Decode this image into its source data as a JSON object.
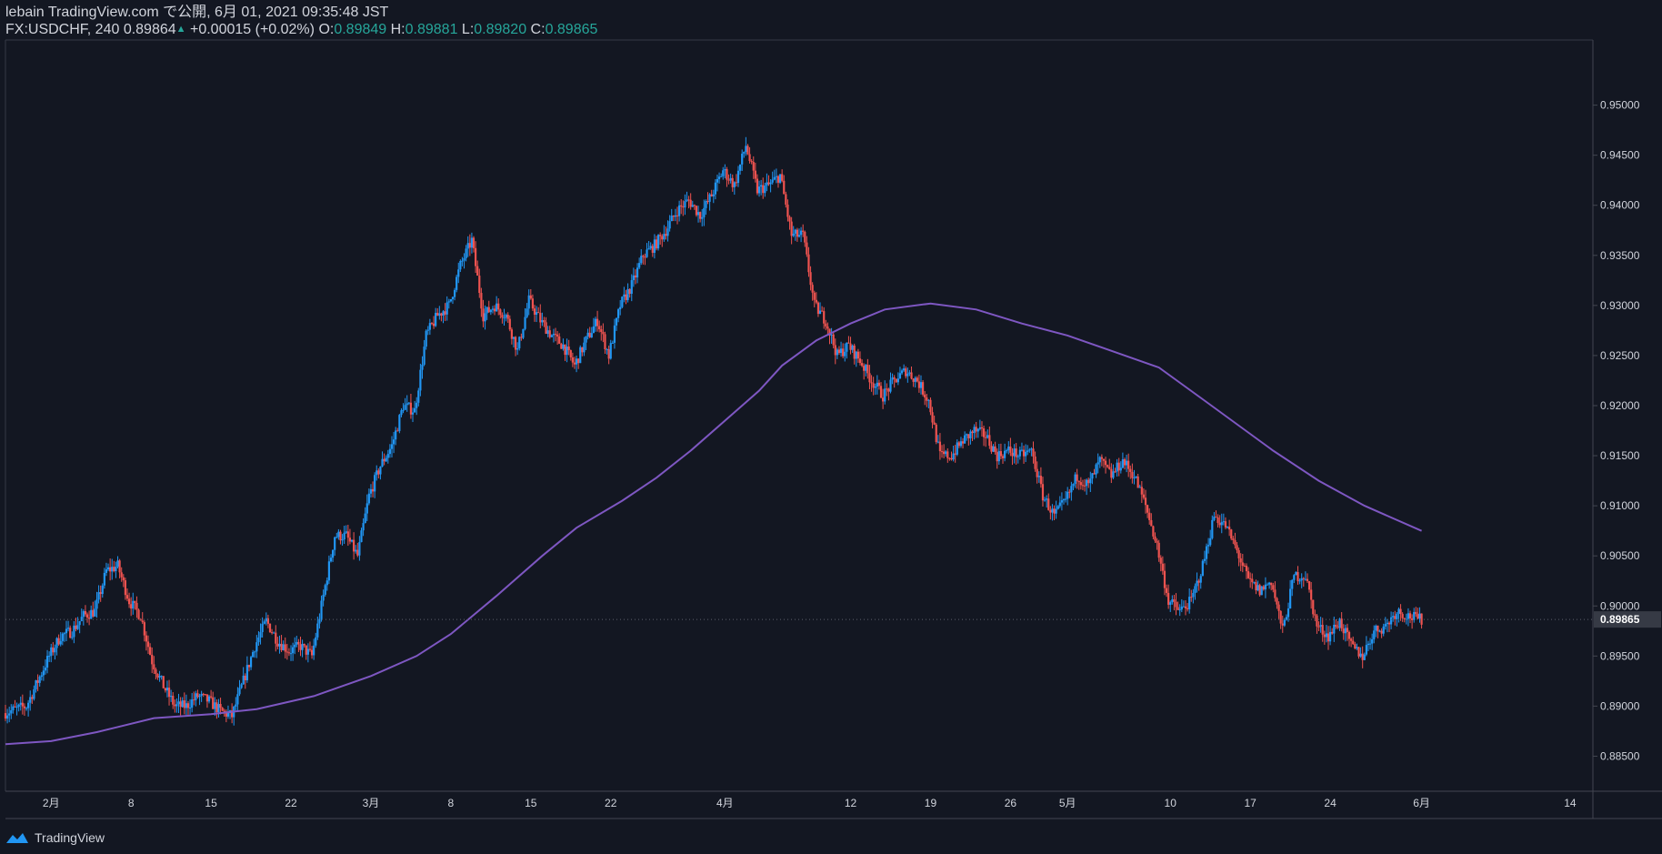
{
  "header": {
    "publish_line": "lebain TradingView.com で公開, 6月 01, 2021 09:35:48 JST",
    "symbol_prefix": "FX:USDCHF, 240 0.89864",
    "change": " +0.00015 (+0.02%) ",
    "o_label": "O:",
    "o_value": "0.89849",
    "h_label": " H:",
    "h_value": "0.89881",
    "l_label": " L:",
    "l_value": "0.89820",
    "c_label": " C:",
    "c_value": "0.89865"
  },
  "footer": {
    "brand": "TradingView"
  },
  "colors": {
    "background": "#131722",
    "up": "#2196f3",
    "down": "#ef5350",
    "ma": "#7e57c2",
    "text": "#d1d4dc",
    "green": "#26a69a"
  },
  "chart_data": {
    "type": "candlestick",
    "series_name": "FX:USDCHF",
    "interval": "240",
    "ylim": [
      0.8815,
      0.9565
    ],
    "y_ticks": [
      0.885,
      0.89,
      0.895,
      0.9,
      0.905,
      0.91,
      0.915,
      0.92,
      0.925,
      0.93,
      0.935,
      0.94,
      0.945,
      0.95
    ],
    "y_tick_labels": [
      "0.88500",
      "0.89000",
      "0.89500",
      "0.90000",
      "0.90500",
      "0.91000",
      "0.91500",
      "0.92000",
      "0.92500",
      "0.93000",
      "0.93500",
      "0.94000",
      "0.94500",
      "0.95000"
    ],
    "last_price_label": "0.89865",
    "last_price": 0.89865,
    "x_range": [
      "2021-01-28",
      "2021-06-16"
    ],
    "x_ticks": [
      {
        "date": "2021-02-01",
        "label": "2月"
      },
      {
        "date": "2021-02-08",
        "label": "8"
      },
      {
        "date": "2021-02-15",
        "label": "15"
      },
      {
        "date": "2021-02-22",
        "label": "22"
      },
      {
        "date": "2021-03-01",
        "label": "3月"
      },
      {
        "date": "2021-03-08",
        "label": "8"
      },
      {
        "date": "2021-03-15",
        "label": "15"
      },
      {
        "date": "2021-03-22",
        "label": "22"
      },
      {
        "date": "2021-04-01",
        "label": "4月"
      },
      {
        "date": "2021-04-12",
        "label": "12"
      },
      {
        "date": "2021-04-19",
        "label": "19"
      },
      {
        "date": "2021-04-26",
        "label": "26"
      },
      {
        "date": "2021-05-01",
        "label": "5月"
      },
      {
        "date": "2021-05-10",
        "label": "10"
      },
      {
        "date": "2021-05-17",
        "label": "17"
      },
      {
        "date": "2021-05-24",
        "label": "24"
      },
      {
        "date": "2021-06-01",
        "label": "6月"
      },
      {
        "date": "2021-06-14",
        "label": "14"
      }
    ],
    "price_path": [
      [
        "2021-01-28",
        0.8893
      ],
      [
        "2021-01-30",
        0.89
      ],
      [
        "2021-02-01",
        0.895
      ],
      [
        "2021-02-02",
        0.897
      ],
      [
        "2021-02-03",
        0.8975
      ],
      [
        "2021-02-04",
        0.899
      ],
      [
        "2021-02-05",
        0.8995
      ],
      [
        "2021-02-06",
        0.9035
      ],
      [
        "2021-02-07",
        0.904
      ],
      [
        "2021-02-08",
        0.9005
      ],
      [
        "2021-02-09",
        0.899
      ],
      [
        "2021-02-10",
        0.8945
      ],
      [
        "2021-02-11",
        0.892
      ],
      [
        "2021-02-12",
        0.89
      ],
      [
        "2021-02-13",
        0.89
      ],
      [
        "2021-02-14",
        0.891
      ],
      [
        "2021-02-15",
        0.8905
      ],
      [
        "2021-02-16",
        0.8895
      ],
      [
        "2021-02-17",
        0.889
      ],
      [
        "2021-02-18",
        0.8925
      ],
      [
        "2021-02-19",
        0.896
      ],
      [
        "2021-02-20",
        0.8985
      ],
      [
        "2021-02-21",
        0.8965
      ],
      [
        "2021-02-22",
        0.8955
      ],
      [
        "2021-02-23",
        0.896
      ],
      [
        "2021-02-24",
        0.895
      ],
      [
        "2021-02-25",
        0.901
      ],
      [
        "2021-02-26",
        0.907
      ],
      [
        "2021-02-27",
        0.907
      ],
      [
        "2021-02-28",
        0.905
      ],
      [
        "2021-03-01",
        0.911
      ],
      [
        "2021-03-02",
        0.914
      ],
      [
        "2021-03-03",
        0.916
      ],
      [
        "2021-03-04",
        0.92
      ],
      [
        "2021-03-05",
        0.9195
      ],
      [
        "2021-03-06",
        0.927
      ],
      [
        "2021-03-07",
        0.929
      ],
      [
        "2021-03-08",
        0.93
      ],
      [
        "2021-03-09",
        0.934
      ],
      [
        "2021-03-10",
        0.9365
      ],
      [
        "2021-03-11",
        0.929
      ],
      [
        "2021-03-12",
        0.93
      ],
      [
        "2021-03-13",
        0.929
      ],
      [
        "2021-03-14",
        0.9255
      ],
      [
        "2021-03-15",
        0.9305
      ],
      [
        "2021-03-16",
        0.9285
      ],
      [
        "2021-03-17",
        0.927
      ],
      [
        "2021-03-18",
        0.926
      ],
      [
        "2021-03-19",
        0.924
      ],
      [
        "2021-03-20",
        0.9265
      ],
      [
        "2021-03-21",
        0.9285
      ],
      [
        "2021-03-22",
        0.925
      ],
      [
        "2021-03-23",
        0.93
      ],
      [
        "2021-03-24",
        0.932
      ],
      [
        "2021-03-25",
        0.935
      ],
      [
        "2021-03-26",
        0.936
      ],
      [
        "2021-03-27",
        0.9375
      ],
      [
        "2021-03-28",
        0.9395
      ],
      [
        "2021-03-29",
        0.9405
      ],
      [
        "2021-03-30",
        0.939
      ],
      [
        "2021-03-31",
        0.941
      ],
      [
        "2021-04-01",
        0.9435
      ],
      [
        "2021-04-02",
        0.942
      ],
      [
        "2021-04-03",
        0.946
      ],
      [
        "2021-04-04",
        0.9415
      ],
      [
        "2021-04-05",
        0.942
      ],
      [
        "2021-04-06",
        0.943
      ],
      [
        "2021-04-07",
        0.937
      ],
      [
        "2021-04-08",
        0.937
      ],
      [
        "2021-04-09",
        0.93
      ],
      [
        "2021-04-10",
        0.9285
      ],
      [
        "2021-04-11",
        0.925
      ],
      [
        "2021-04-12",
        0.926
      ],
      [
        "2021-04-13",
        0.9245
      ],
      [
        "2021-04-14",
        0.9225
      ],
      [
        "2021-04-15",
        0.921
      ],
      [
        "2021-04-16",
        0.9225
      ],
      [
        "2021-04-17",
        0.9235
      ],
      [
        "2021-04-18",
        0.9225
      ],
      [
        "2021-04-19",
        0.9205
      ],
      [
        "2021-04-20",
        0.915
      ],
      [
        "2021-04-21",
        0.915
      ],
      [
        "2021-04-22",
        0.9165
      ],
      [
        "2021-04-23",
        0.9175
      ],
      [
        "2021-04-24",
        0.917
      ],
      [
        "2021-04-25",
        0.915
      ],
      [
        "2021-04-26",
        0.9155
      ],
      [
        "2021-04-27",
        0.915
      ],
      [
        "2021-04-28",
        0.9155
      ],
      [
        "2021-04-29",
        0.911
      ],
      [
        "2021-04-30",
        0.909
      ],
      [
        "2021-05-01",
        0.9105
      ],
      [
        "2021-05-02",
        0.913
      ],
      [
        "2021-05-03",
        0.912
      ],
      [
        "2021-05-04",
        0.9145
      ],
      [
        "2021-05-05",
        0.913
      ],
      [
        "2021-05-06",
        0.9145
      ],
      [
        "2021-05-07",
        0.913
      ],
      [
        "2021-05-08",
        0.91
      ],
      [
        "2021-05-09",
        0.906
      ],
      [
        "2021-05-10",
        0.9005
      ],
      [
        "2021-05-11",
        0.8995
      ],
      [
        "2021-05-12",
        0.9005
      ],
      [
        "2021-05-13",
        0.904
      ],
      [
        "2021-05-14",
        0.909
      ],
      [
        "2021-05-15",
        0.908
      ],
      [
        "2021-05-16",
        0.9055
      ],
      [
        "2021-05-17",
        0.9025
      ],
      [
        "2021-05-18",
        0.9015
      ],
      [
        "2021-05-19",
        0.9025
      ],
      [
        "2021-05-20",
        0.8975
      ],
      [
        "2021-05-21",
        0.903
      ],
      [
        "2021-05-22",
        0.903
      ],
      [
        "2021-05-23",
        0.898
      ],
      [
        "2021-05-24",
        0.897
      ],
      [
        "2021-05-25",
        0.8985
      ],
      [
        "2021-05-26",
        0.896
      ],
      [
        "2021-05-27",
        0.895
      ],
      [
        "2021-05-28",
        0.8975
      ],
      [
        "2021-05-29",
        0.898
      ],
      [
        "2021-05-30",
        0.8995
      ],
      [
        "2021-05-31",
        0.899
      ],
      [
        "2021-06-01",
        0.89865
      ]
    ],
    "ma_line": [
      [
        "2021-01-28",
        0.8862
      ],
      [
        "2021-02-01",
        0.8865
      ],
      [
        "2021-02-05",
        0.8874
      ],
      [
        "2021-02-10",
        0.8888
      ],
      [
        "2021-02-15",
        0.8892
      ],
      [
        "2021-02-19",
        0.8897
      ],
      [
        "2021-02-24",
        0.891
      ],
      [
        "2021-03-01",
        0.893
      ],
      [
        "2021-03-05",
        0.895
      ],
      [
        "2021-03-08",
        0.8972
      ],
      [
        "2021-03-12",
        0.901
      ],
      [
        "2021-03-16",
        0.905
      ],
      [
        "2021-03-19",
        0.9078
      ],
      [
        "2021-03-23",
        0.9105
      ],
      [
        "2021-03-26",
        0.9128
      ],
      [
        "2021-03-29",
        0.9155
      ],
      [
        "2021-04-01",
        0.9185
      ],
      [
        "2021-04-04",
        0.9215
      ],
      [
        "2021-04-06",
        0.924
      ],
      [
        "2021-04-09",
        0.9265
      ],
      [
        "2021-04-12",
        0.9282
      ],
      [
        "2021-04-15",
        0.9296
      ],
      [
        "2021-04-19",
        0.9302
      ],
      [
        "2021-04-23",
        0.9296
      ],
      [
        "2021-04-27",
        0.9282
      ],
      [
        "2021-05-01",
        0.927
      ],
      [
        "2021-05-04",
        0.9258
      ],
      [
        "2021-05-09",
        0.9238
      ],
      [
        "2021-05-13",
        0.9205
      ],
      [
        "2021-05-16",
        0.918
      ],
      [
        "2021-05-19",
        0.9155
      ],
      [
        "2021-05-23",
        0.9125
      ],
      [
        "2021-05-27",
        0.91
      ],
      [
        "2021-06-01",
        0.9075
      ]
    ]
  }
}
